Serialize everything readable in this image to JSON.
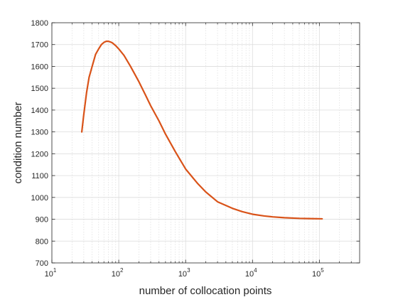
{
  "chart_data": {
    "type": "line",
    "xscale": "log",
    "xlim": [
      10,
      400000
    ],
    "ylim": [
      700,
      1800
    ],
    "xlabel": "number of collocation points",
    "ylabel": "condition number",
    "grid": true,
    "minor_grid_x": true,
    "line_color": "#D95319",
    "x_ticks": [
      {
        "base": "10",
        "exp": "1",
        "value": 10
      },
      {
        "base": "10",
        "exp": "2",
        "value": 100
      },
      {
        "base": "10",
        "exp": "3",
        "value": 1000
      },
      {
        "base": "10",
        "exp": "4",
        "value": 10000
      },
      {
        "base": "10",
        "exp": "5",
        "value": 100000
      }
    ],
    "y_ticks": [
      "700",
      "800",
      "900",
      "1000",
      "1100",
      "1200",
      "1300",
      "1400",
      "1500",
      "1600",
      "1700",
      "1800"
    ],
    "series": [
      {
        "x": [
          28,
          30,
          33,
          36,
          40,
          45,
          50,
          55,
          60,
          65,
          70,
          75,
          80,
          90,
          100,
          120,
          150,
          200,
          250,
          300,
          400,
          500,
          700,
          1000,
          1500,
          2000,
          3000,
          5000,
          7000,
          10000,
          15000,
          20000,
          30000,
          50000,
          70000,
          110000
        ],
        "y": [
          1300,
          1380,
          1480,
          1550,
          1600,
          1655,
          1680,
          1700,
          1710,
          1715,
          1715,
          1712,
          1708,
          1695,
          1680,
          1650,
          1600,
          1530,
          1470,
          1420,
          1350,
          1290,
          1210,
          1130,
          1065,
          1025,
          980,
          950,
          935,
          923,
          915,
          911,
          907,
          904,
          903,
          902
        ]
      }
    ]
  }
}
